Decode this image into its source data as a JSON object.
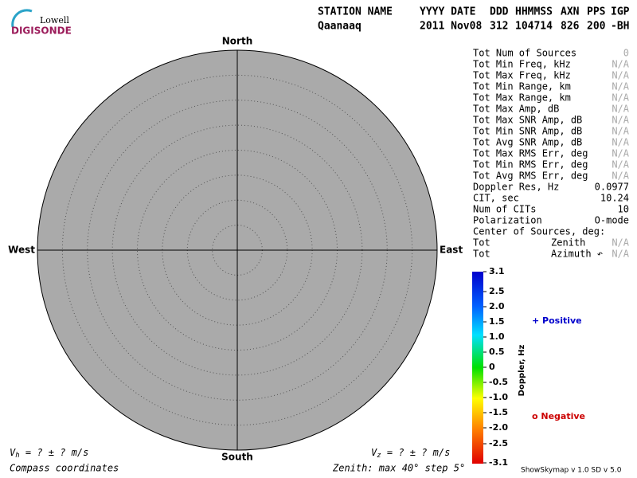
{
  "logo": {
    "top": "Lowell",
    "bottom": "DIGISONDE"
  },
  "header": {
    "labels": [
      "STATION NAME",
      "YYYY DATE",
      "DDD",
      "HHMMSS",
      "AXN",
      "PPS",
      "IGP"
    ],
    "values": [
      "Qaanaaq",
      "2011 Nov08",
      "312",
      "104714",
      "826",
      "200",
      "-BH"
    ]
  },
  "directions": {
    "north": "North",
    "south": "South",
    "west": "West",
    "east": "East"
  },
  "stats": [
    [
      "Tot Num of Sources",
      "0"
    ],
    [
      "Tot Min Freq, kHz",
      "N/A"
    ],
    [
      "Tot Max Freq, kHz",
      "N/A"
    ],
    [
      "Tot Min Range, km",
      "N/A"
    ],
    [
      "Tot Max Range, km",
      "N/A"
    ],
    [
      "Tot Max Amp, dB",
      "N/A"
    ],
    [
      "Tot Max SNR Amp, dB",
      "N/A"
    ],
    [
      "Tot Min SNR Amp, dB",
      "N/A"
    ],
    [
      "Tot Avg SNR Amp, dB",
      "N/A"
    ],
    [
      "Tot Max RMS Err, deg",
      "N/A"
    ],
    [
      "Tot Min RMS Err, deg",
      "N/A"
    ],
    [
      "Tot Avg RMS Err, deg",
      "N/A"
    ],
    [
      "Doppler Res, Hz",
      "0.0977"
    ],
    [
      "CIT, sec",
      "10.24"
    ],
    [
      "Num of CITs",
      "10"
    ],
    [
      "Polarization",
      "O-mode"
    ]
  ],
  "center": {
    "title": "Center of Sources, deg:",
    "rows": [
      [
        "Tot",
        "Zenith",
        "N/A"
      ],
      [
        "Tot",
        "Azimuth ↶",
        "N/A"
      ]
    ]
  },
  "colorbar": {
    "title": "Doppler, Hz",
    "ticks": [
      "3.1",
      "2.5",
      "2.0",
      "1.5",
      "1.0",
      "0.5",
      "0",
      "-0.5",
      "-1.0",
      "-1.5",
      "-2.0",
      "-2.5",
      "-3.1"
    ]
  },
  "legend": {
    "positive": "+ Positive",
    "negative": "o Negative"
  },
  "footer": {
    "vh": {
      "symbol": "V",
      "sub": "h",
      "text": " =  ? ±  ? m/s"
    },
    "vz": {
      "symbol": "V",
      "sub": "z",
      "text": " =  ? ±  ? m/s"
    },
    "coords": "Compass coordinates",
    "zenith": "Zenith: max 40°  step 5°",
    "version": "ShowSkymap v 1.0  SD v 5.0"
  }
}
